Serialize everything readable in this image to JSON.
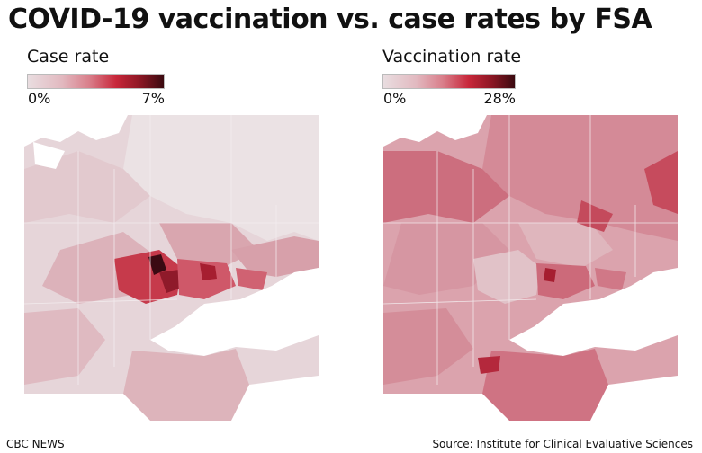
{
  "title": "COVID-19 vaccination vs. case rates by FSA",
  "maps": [
    {
      "label": "Case rate",
      "legend_min": "0%",
      "legend_max": "7%"
    },
    {
      "label": "Vaccination rate",
      "legend_min": "0%",
      "legend_max": "28%"
    }
  ],
  "colors": {
    "scale_low": "#e9dde0",
    "scale_mid": "#d97f8b",
    "scale_high": "#c8273a",
    "scale_max": "#3a0a10",
    "water": "#ffffff",
    "boundary": "#f4eef0"
  },
  "footer": {
    "credit": "CBC NEWS",
    "source": "Source: Institute for Clinical Evaluative Sciences"
  }
}
